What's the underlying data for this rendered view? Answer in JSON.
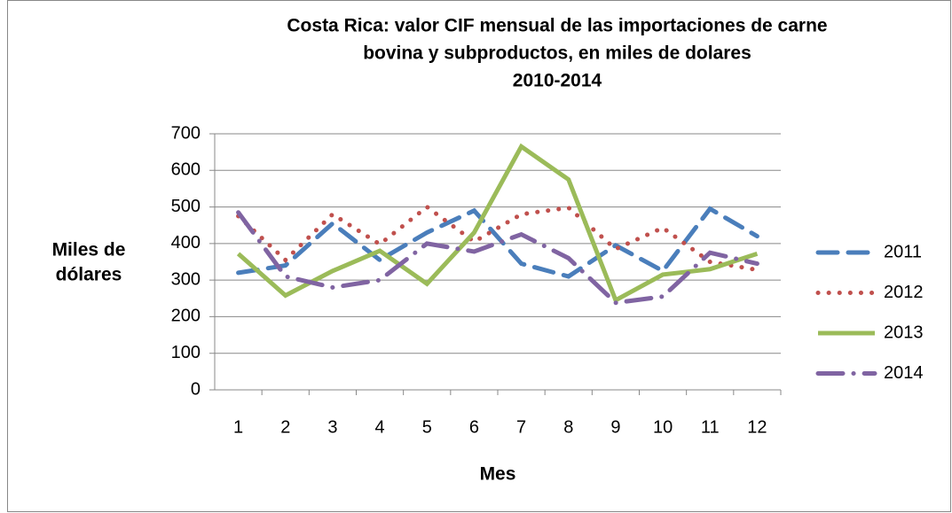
{
  "chart_data": {
    "type": "line",
    "title": [
      "Costa Rica: valor CIF mensual de las importaciones de carne",
      "bovina y subproductos, en miles de dolares",
      "2010-2014"
    ],
    "xlabel": "Mes",
    "ylabel": [
      "Miles de",
      "dólares"
    ],
    "categories": [
      "1",
      "2",
      "3",
      "4",
      "5",
      "6",
      "7",
      "8",
      "9",
      "10",
      "11",
      "12"
    ],
    "ylim": [
      0,
      700
    ],
    "yticks": [
      0,
      100,
      200,
      300,
      400,
      500,
      600,
      700
    ],
    "grid": true,
    "legend": "right",
    "series": [
      {
        "name": "2011",
        "color": "#4a7ebb",
        "style": "dashed",
        "values": [
          320,
          340,
          455,
          355,
          430,
          490,
          345,
          310,
          395,
          325,
          495,
          420
        ]
      },
      {
        "name": "2012",
        "color": "#c0504d",
        "style": "dotted",
        "values": [
          475,
          355,
          480,
          398,
          500,
          405,
          480,
          498,
          385,
          443,
          350,
          328
        ]
      },
      {
        "name": "2013",
        "color": "#9bbb59",
        "style": "solid",
        "values": [
          372,
          258,
          325,
          380,
          290,
          430,
          665,
          575,
          245,
          315,
          330,
          372
        ]
      },
      {
        "name": "2014",
        "color": "#8064a2",
        "style": "dashdot",
        "values": [
          485,
          310,
          280,
          300,
          400,
          378,
          425,
          360,
          238,
          255,
          375,
          345
        ]
      }
    ]
  }
}
